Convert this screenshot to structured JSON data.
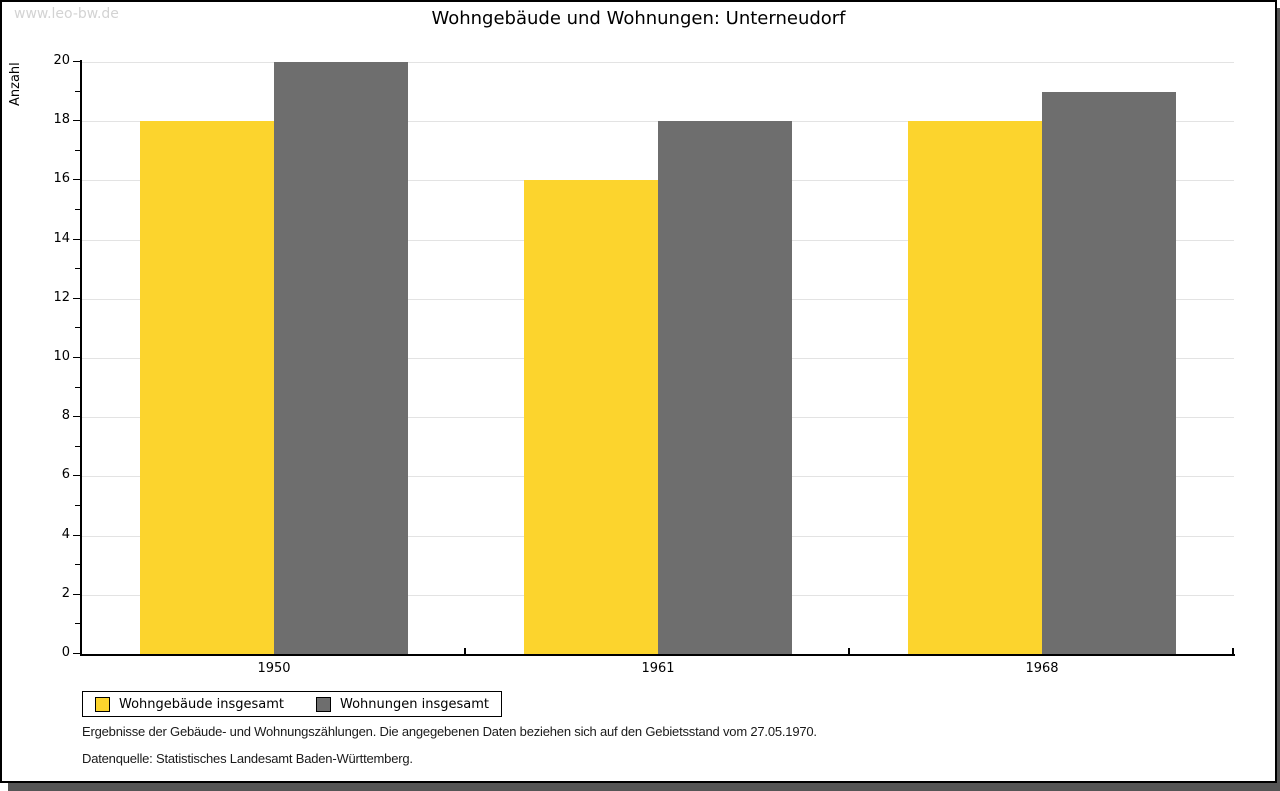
{
  "watermark": {
    "text": "www.leo-bw.de"
  },
  "header": {
    "title": "Wohngebäude und Wohnungen: Unterneudorf"
  },
  "chart_data": {
    "type": "bar",
    "title": "Wohngebäude und Wohnungen: Unterneudorf",
    "categories": [
      "1950",
      "1961",
      "1968"
    ],
    "series": [
      {
        "name": "Wohngebäude insgesamt",
        "color": "#FCD42D",
        "values": [
          18,
          16,
          18
        ]
      },
      {
        "name": "Wohnungen insgesamt",
        "color": "#6E6E6E",
        "values": [
          20,
          18,
          19
        ]
      }
    ],
    "xlabel": "",
    "ylabel": "Anzahl",
    "ylim": [
      0,
      20
    ],
    "y_major_step": 2,
    "y_minor_step": 1,
    "grid": true,
    "legend_position": "bottom-left"
  },
  "notes": {
    "line1": "Ergebnisse der Gebäude- und Wohnungszählungen. Die angegebenen Daten beziehen sich auf den Gebietsstand vom 27.05.1970.",
    "line2": "Datenquelle: Statistisches Landesamt Baden-Württemberg."
  },
  "colors": {
    "bar_yellow": "#FCD42D",
    "bar_gray": "#6E6E6E",
    "gridline": "#E3E3E3",
    "axis": "#000000",
    "watermark_text": "#D3D3D3",
    "card_shadow": "#555555"
  }
}
